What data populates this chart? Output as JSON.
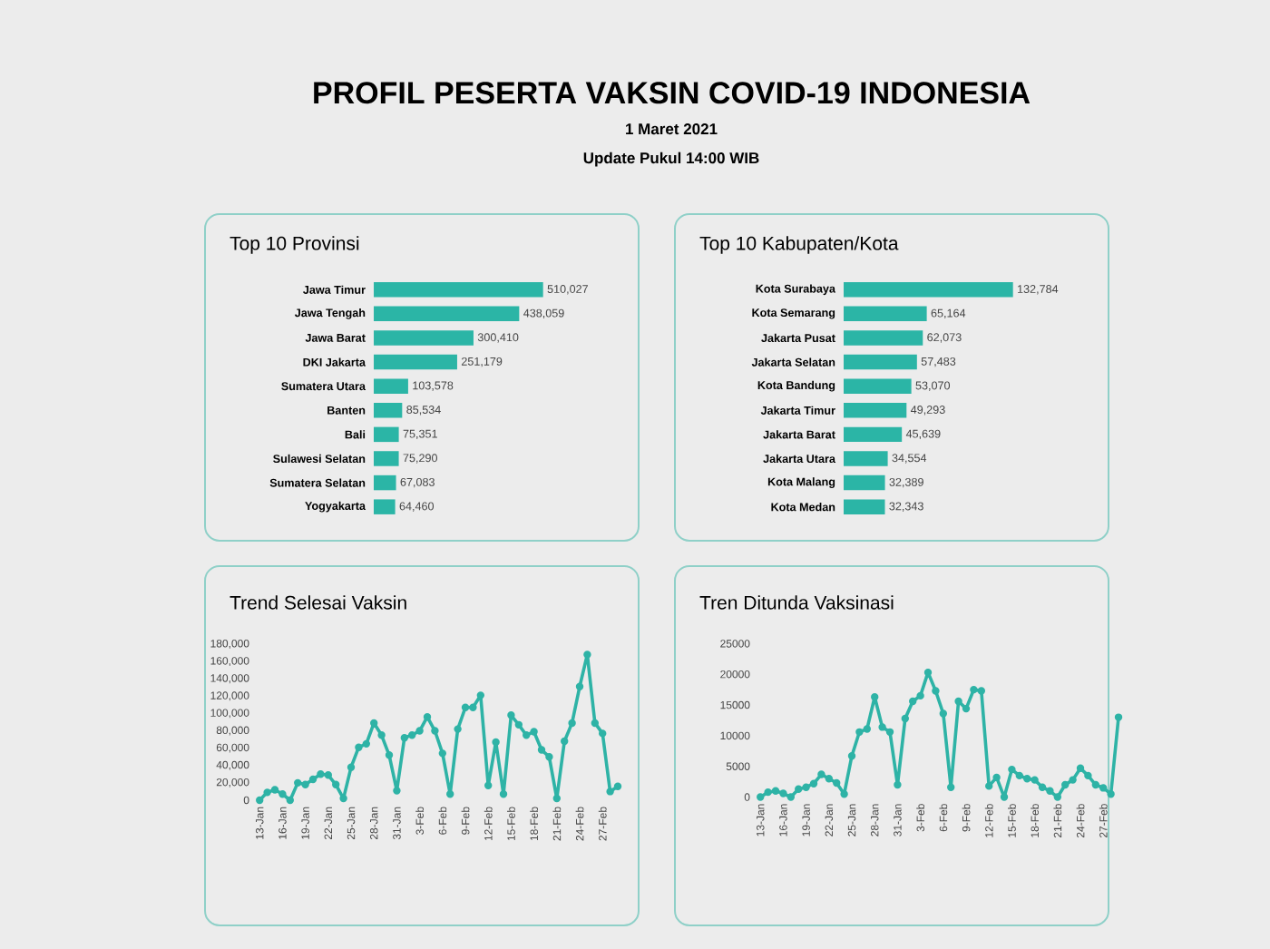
{
  "chart_data": [
    {
      "type": "other",
      "title": "PROFIL PESERTA VAKSIN COVID-19 INDONESIA",
      "subtitle": "1 Maret 2021",
      "annotations": [
        "Update Pukul 14:00 WIB"
      ]
    },
    {
      "type": "bar",
      "orientation": "horizontal",
      "title": "Top 10 Provinsi",
      "color": "#2bb5a6",
      "categories": [
        "Jawa Timur",
        "Jawa Tengah",
        "Jawa Barat",
        "DKI Jakarta",
        "Sumatera Utara",
        "Banten",
        "Bali",
        "Sulawesi Selatan",
        "Sumatera Selatan",
        "Yogyakarta"
      ],
      "values": [
        510027,
        438059,
        300410,
        251179,
        103578,
        85534,
        75351,
        75290,
        67083,
        64460
      ],
      "value_labels": [
        "510,027",
        "438,059",
        "300,410",
        "251,179",
        "103,578",
        "85,534",
        "75,351",
        "75,290",
        "67,083",
        "64,460"
      ]
    },
    {
      "type": "bar",
      "orientation": "horizontal",
      "title": "Top 10 Kabupaten/Kota",
      "color": "#2bb5a6",
      "categories": [
        "Kota Surabaya",
        "Kota Semarang",
        "Jakarta Pusat",
        "Jakarta Selatan",
        "Kota Bandung",
        "Jakarta Timur",
        "Jakarta Barat",
        "Jakarta Utara",
        "Kota Malang",
        "Kota Medan"
      ],
      "values": [
        132784,
        65164,
        62073,
        57483,
        53070,
        49293,
        45639,
        34554,
        32389,
        32343
      ],
      "value_labels": [
        "132,784",
        "65,164",
        "62,073",
        "57,483",
        "53,070",
        "49,293",
        "45,639",
        "34,554",
        "32,389",
        "32,343"
      ]
    },
    {
      "type": "line",
      "title": "Trend Selesai Vaksin",
      "color": "#2eb3a6",
      "marker": "circle",
      "categories": [
        "13-Jan",
        null,
        null,
        "16-Jan",
        null,
        null,
        "19-Jan",
        null,
        null,
        "22-Jan",
        null,
        null,
        "25-Jan",
        null,
        null,
        "28-Jan",
        null,
        null,
        "31-Jan",
        null,
        null,
        "3-Feb",
        null,
        null,
        "6-Feb",
        null,
        null,
        "9-Feb",
        null,
        null,
        "12-Feb",
        null,
        null,
        "15-Feb",
        null,
        null,
        "18-Feb",
        null,
        null,
        "21-Feb",
        null,
        null,
        "24-Feb",
        null,
        null,
        "27-Feb",
        null,
        null
      ],
      "values": [
        0,
        9000,
        12000,
        7000,
        0,
        20000,
        18000,
        24000,
        30000,
        29000,
        18000,
        2000,
        38000,
        61000,
        65000,
        89000,
        75000,
        52000,
        11000,
        72000,
        75000,
        80000,
        96000,
        80000,
        54000,
        7000,
        82000,
        107000,
        107000,
        121000,
        17000,
        67000,
        7000,
        98000,
        87000,
        75000,
        79000,
        58000,
        50000,
        2000,
        68000,
        89000,
        131000,
        168000,
        89000,
        77000,
        10000,
        16000
      ],
      "ylim": [
        0,
        180000
      ],
      "yticks": [
        0,
        {
          "value": 20000,
          "label": "20,000"
        },
        {
          "value": 40000,
          "label": "40,000"
        },
        {
          "value": 60000,
          "label": "60,000"
        },
        {
          "value": 80000,
          "label": "80,000"
        },
        {
          "value": 100000,
          "label": "100,000"
        },
        {
          "value": 120000,
          "label": "120,000"
        },
        {
          "value": 140000,
          "label": "140,000"
        },
        {
          "value": 160000,
          "label": "160,000"
        },
        {
          "value": 180000,
          "label": "180,000"
        }
      ]
    },
    {
      "type": "line",
      "title": "Tren Ditunda Vaksinasi",
      "color": "#2eb3a6",
      "marker": "circle",
      "categories": [
        "13-Jan",
        null,
        null,
        "16-Jan",
        null,
        null,
        "19-Jan",
        null,
        null,
        "22-Jan",
        null,
        null,
        "25-Jan",
        null,
        null,
        "28-Jan",
        null,
        null,
        "31-Jan",
        null,
        null,
        "3-Feb",
        null,
        null,
        "6-Feb",
        null,
        null,
        "9-Feb",
        null,
        null,
        "12-Feb",
        null,
        null,
        "15-Feb",
        null,
        null,
        "18-Feb",
        null,
        null,
        "21-Feb",
        null,
        null,
        "24-Feb",
        null,
        null,
        "27-Feb",
        null,
        null
      ],
      "values": [
        0,
        800,
        1000,
        600,
        0,
        1300,
        1600,
        2200,
        3700,
        3000,
        2300,
        500,
        6700,
        10600,
        11100,
        16300,
        11400,
        10600,
        2000,
        12800,
        15600,
        16500,
        20300,
        17300,
        13600,
        1600,
        15600,
        14400,
        17500,
        17300,
        1800,
        3200,
        0,
        4500,
        3500,
        3000,
        2800,
        1600,
        1000,
        0,
        2000,
        2800,
        4700,
        3500,
        2000,
        1500,
        500,
        13000
      ],
      "ylim": [
        0,
        25000
      ],
      "yticks": [
        0,
        5000,
        10000,
        15000,
        20000,
        25000
      ]
    }
  ]
}
